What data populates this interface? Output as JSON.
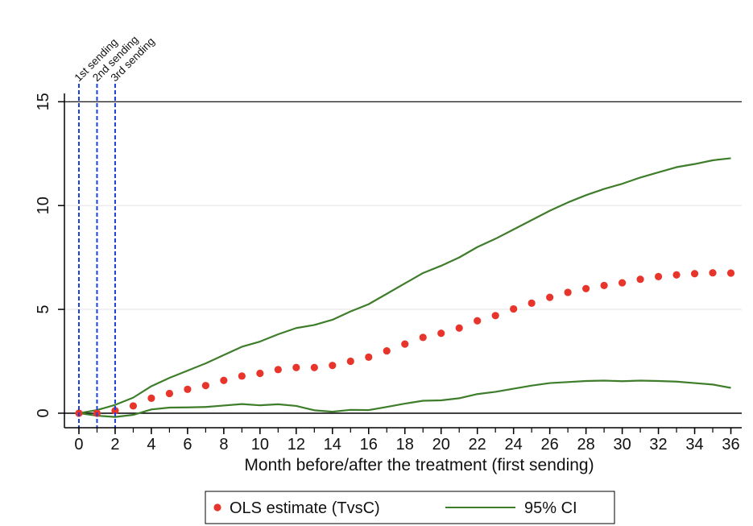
{
  "chart_data": {
    "type": "scatter",
    "title": "",
    "xlabel": "Month before/after the treatment (first sending)",
    "ylabel": "",
    "xlim": [
      -0.8,
      36.6
    ],
    "ylim": [
      -0.7,
      15.4
    ],
    "x_ticks": [
      0,
      2,
      4,
      6,
      8,
      10,
      12,
      14,
      16,
      18,
      20,
      22,
      24,
      26,
      28,
      30,
      32,
      34,
      36
    ],
    "y_ticks": [
      0,
      5,
      10,
      15
    ],
    "grid": "horizontal",
    "legend_placement": "bottom",
    "x": [
      0,
      1,
      2,
      3,
      4,
      5,
      6,
      7,
      8,
      9,
      10,
      11,
      12,
      13,
      14,
      15,
      16,
      17,
      18,
      19,
      20,
      21,
      22,
      23,
      24,
      25,
      26,
      27,
      28,
      29,
      30,
      31,
      32,
      33,
      34,
      35,
      36
    ],
    "series": [
      {
        "name": "OLS estimate (TvsC)",
        "kind": "points",
        "color": "#e8352b",
        "values": [
          0,
          0,
          0.12,
          0.35,
          0.72,
          0.95,
          1.15,
          1.33,
          1.58,
          1.79,
          1.92,
          2.1,
          2.2,
          2.2,
          2.3,
          2.5,
          2.7,
          3.0,
          3.33,
          3.65,
          3.85,
          4.1,
          4.45,
          4.7,
          5.02,
          5.3,
          5.58,
          5.82,
          6.0,
          6.15,
          6.28,
          6.45,
          6.58,
          6.66,
          6.72,
          6.76,
          6.75
        ]
      },
      {
        "name": "95% CI",
        "kind": "line",
        "color": "#3e7d2a",
        "upper": [
          0,
          0.15,
          0.4,
          0.75,
          1.3,
          1.7,
          2.05,
          2.4,
          2.8,
          3.2,
          3.45,
          3.8,
          4.1,
          4.25,
          4.5,
          4.9,
          5.25,
          5.75,
          6.25,
          6.75,
          7.1,
          7.5,
          8.0,
          8.4,
          8.85,
          9.3,
          9.75,
          10.15,
          10.5,
          10.8,
          11.05,
          11.35,
          11.6,
          11.85,
          12.0,
          12.18,
          12.28
        ],
        "lower": [
          0,
          -0.12,
          -0.18,
          -0.08,
          0.18,
          0.27,
          0.28,
          0.3,
          0.37,
          0.44,
          0.38,
          0.43,
          0.35,
          0.14,
          0.07,
          0.16,
          0.15,
          0.3,
          0.46,
          0.6,
          0.62,
          0.72,
          0.92,
          1.03,
          1.18,
          1.33,
          1.45,
          1.5,
          1.55,
          1.57,
          1.54,
          1.57,
          1.55,
          1.52,
          1.45,
          1.38,
          1.22
        ]
      }
    ],
    "reference_lines": [
      {
        "x": 0,
        "label": "1st sending",
        "color": "#1a3fdc"
      },
      {
        "x": 1,
        "label": "2nd sending",
        "color": "#1a3fdc"
      },
      {
        "x": 2,
        "label": "3rd sending",
        "color": "#1a3fdc"
      }
    ],
    "zero_line": 0
  }
}
